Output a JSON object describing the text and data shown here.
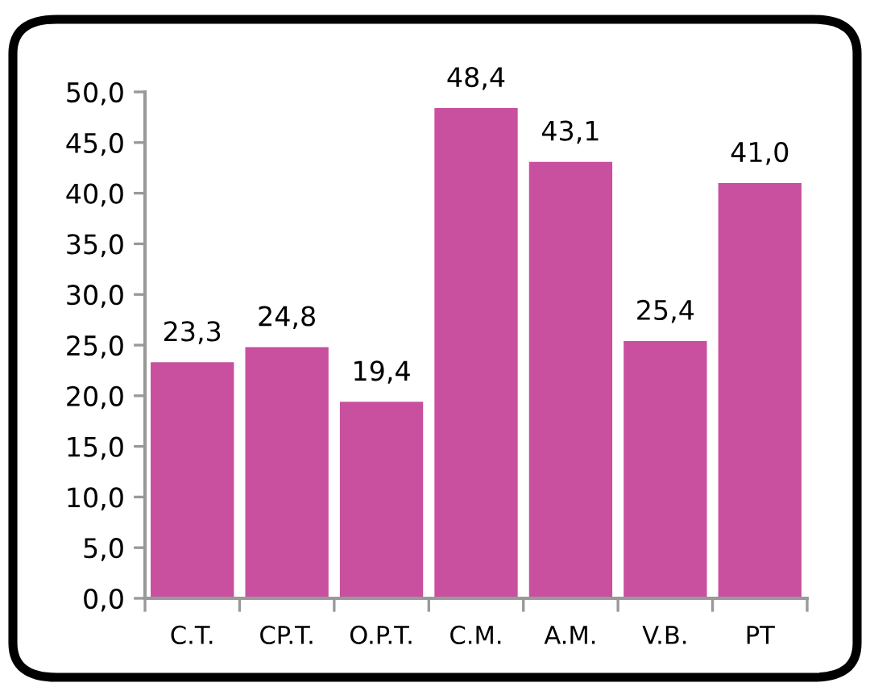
{
  "chart_data": {
    "type": "bar",
    "categories": [
      "C.T.",
      "CP.T.",
      "O.P.T.",
      "C.M.",
      "A.M.",
      "V.B.",
      "PT"
    ],
    "values": [
      23.3,
      24.8,
      19.4,
      48.4,
      43.1,
      25.4,
      41.0
    ],
    "value_labels": [
      "23,3",
      "24,8",
      "19,4",
      "48,4",
      "43,1",
      "25,4",
      "41,0"
    ],
    "color": "#c8509e",
    "ylim": [
      0,
      50
    ],
    "yticks": [
      {
        "value": 0,
        "label": "0,0"
      },
      {
        "value": 5,
        "label": "5,0"
      },
      {
        "value": 10,
        "label": "10,0"
      },
      {
        "value": 15,
        "label": "15,0"
      },
      {
        "value": 20,
        "label": "20,0"
      },
      {
        "value": 25,
        "label": "25,0"
      },
      {
        "value": 30,
        "label": "30,0"
      },
      {
        "value": 35,
        "label": "35,0"
      },
      {
        "value": 40,
        "label": "40,0"
      },
      {
        "value": 45,
        "label": "45,0"
      },
      {
        "value": 50,
        "label": "50,0"
      }
    ]
  }
}
